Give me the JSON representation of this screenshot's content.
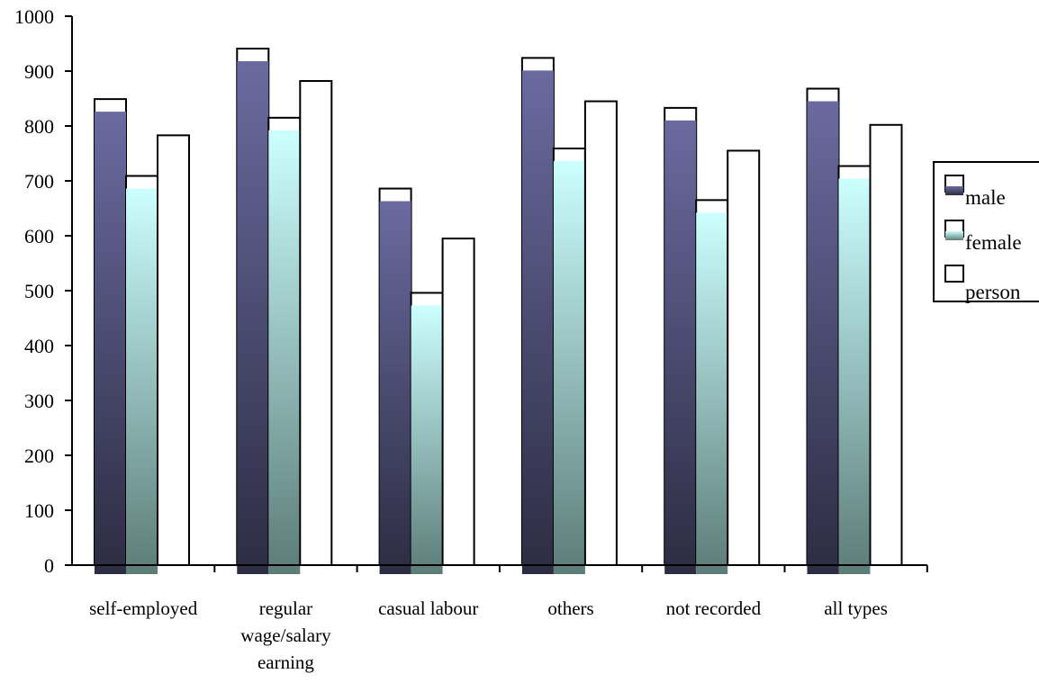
{
  "chart_data": {
    "type": "bar",
    "title": "",
    "xlabel": "",
    "ylabel": "",
    "ylim": [
      0,
      1000
    ],
    "yticks": [
      "0",
      "100",
      "200",
      "300",
      "400",
      "500",
      "600",
      "700",
      "800",
      "900",
      "1000"
    ],
    "categories": [
      [
        "self-employed"
      ],
      [
        "regular",
        "wage/salary",
        "earning"
      ],
      [
        "casual labour"
      ],
      [
        "others"
      ],
      [
        "not recorded"
      ],
      [
        "all types"
      ]
    ],
    "series": [
      {
        "name": "male",
        "values": [
          849,
          941,
          686,
          924,
          833,
          868
        ]
      },
      {
        "name": "female",
        "values": [
          709,
          815,
          496,
          759,
          665,
          727
        ]
      },
      {
        "name": "person",
        "values": [
          783,
          882,
          595,
          845,
          755,
          802
        ]
      }
    ],
    "legend": {
      "position": "right",
      "entries": [
        "male",
        "female",
        "person"
      ]
    },
    "colors": {
      "male_top": "#6a6aa0",
      "male_bottom": "#2c2c42",
      "female_top": "#ccffff",
      "female_bottom": "#5c7c78",
      "person": "#ffffff",
      "outline": "#000000"
    },
    "grid": false
  }
}
